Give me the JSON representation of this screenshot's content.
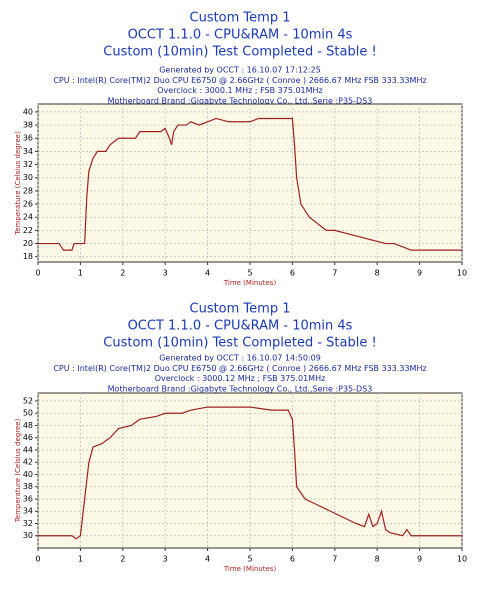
{
  "chart_data": [
    {
      "type": "line",
      "title": [
        "Custom Temp 1",
        "OCCT 1.1.0 - CPU&RAM - 10min 4s",
        "Custom (10min) Test Completed - Stable !"
      ],
      "info": [
        "Generated by OCCT : 16.10.07 17:12:25",
        "CPU : Intel(R) Core(TM)2 Duo CPU      E6750  @ 2.66GHz ( Conroe ) 2666.67 MHz FSB 333.33MHz",
        "Overclock : 3000.1 MHz ; FSB 375.01MHz",
        "Motherboard Brand :Gigabyte Technology Co., Ltd.,Serie :P35-DS3"
      ],
      "xlabel": "Time (Minutes)",
      "ylabel": "Temperature (Celsius degree)",
      "xlim": [
        0,
        10
      ],
      "xticks": [
        0,
        1,
        2,
        3,
        4,
        5,
        6,
        7,
        8,
        9,
        10
      ],
      "ylim": [
        17.2,
        41.2
      ],
      "yticks": [
        18,
        20,
        22,
        24,
        26,
        28,
        30,
        32,
        34,
        36,
        38,
        40
      ],
      "grid": true,
      "color": "#a02020",
      "x": [
        0,
        0.5,
        0.6,
        0.8,
        0.85,
        1.0,
        1.1,
        1.15,
        1.2,
        1.3,
        1.4,
        1.6,
        1.7,
        1.9,
        2.3,
        2.4,
        2.9,
        3.0,
        3.1,
        3.15,
        3.2,
        3.3,
        3.5,
        3.6,
        3.8,
        4.0,
        4.2,
        4.5,
        5.0,
        5.2,
        5.5,
        6.0,
        6.05,
        6.1,
        6.2,
        6.4,
        6.6,
        6.8,
        7.0,
        7.3,
        7.6,
        7.9,
        8.2,
        8.4,
        8.6,
        8.8,
        10
      ],
      "values": [
        20,
        20,
        19,
        19,
        20,
        20,
        20,
        27,
        31,
        33,
        34,
        34,
        35,
        36,
        36,
        37,
        37,
        37.5,
        36,
        35,
        37,
        38,
        38,
        38.5,
        38,
        38.5,
        39,
        38.5,
        38.5,
        39,
        39,
        39,
        35,
        30,
        26,
        24,
        23,
        22,
        22,
        21.5,
        21,
        20.5,
        20,
        20,
        19.5,
        19,
        19
      ]
    },
    {
      "type": "line",
      "title": [
        "Custom Temp 1",
        "OCCT 1.1.0 - CPU&RAM - 10min 4s",
        "Custom (10min) Test Completed - Stable !"
      ],
      "info": [
        "Generated by OCCT : 16.10.07 14:50:09",
        "CPU : Intel(R) Core(TM)2 Duo CPU      E6750  @ 2.66GHz ( Conroe ) 2666.67 MHz FSB 333.33MHz",
        "Overclock : 3000.12 MHz ; FSB 375.01MHz",
        "Motherboard Brand :Gigabyte Technology Co., Ltd.,Serie :P35-DS3"
      ],
      "xlabel": "Time (Minutes)",
      "ylabel": "Temperature (Celsius degree)",
      "xlim": [
        0,
        10
      ],
      "xticks": [
        0,
        1,
        2,
        3,
        4,
        5,
        6,
        7,
        8,
        9,
        10
      ],
      "ylim": [
        28,
        53.3
      ],
      "yticks": [
        30,
        32,
        34,
        36,
        38,
        40,
        42,
        44,
        46,
        48,
        50,
        52
      ],
      "grid": true,
      "color": "#a02020",
      "x": [
        0,
        0.8,
        0.9,
        1.0,
        1.1,
        1.2,
        1.3,
        1.5,
        1.7,
        1.9,
        2.2,
        2.4,
        2.8,
        3.0,
        3.4,
        3.6,
        4.0,
        4.5,
        5.0,
        5.5,
        5.9,
        6.0,
        6.05,
        6.1,
        6.3,
        6.6,
        6.9,
        7.2,
        7.5,
        7.7,
        7.8,
        7.9,
        8.0,
        8.1,
        8.2,
        8.3,
        8.6,
        8.7,
        8.8,
        10
      ],
      "values": [
        30,
        30,
        29.5,
        30,
        36,
        42,
        44.5,
        45,
        46,
        47.5,
        48,
        49,
        49.5,
        50,
        50,
        50.5,
        51,
        51,
        51,
        50.5,
        50.5,
        49,
        44,
        38,
        36,
        35,
        34,
        33,
        32,
        31.5,
        33.5,
        31.5,
        32,
        34,
        31,
        30.5,
        30,
        31,
        30,
        30
      ]
    }
  ]
}
